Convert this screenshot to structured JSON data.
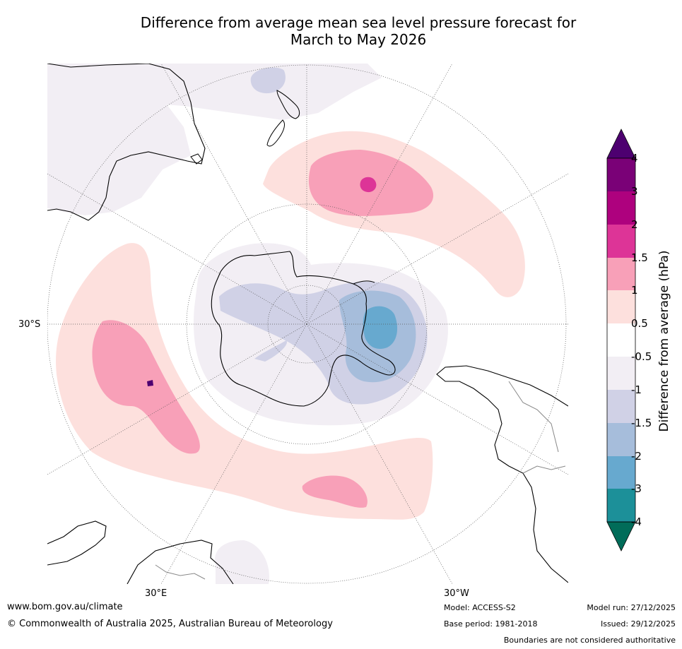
{
  "title": {
    "line1": "Difference from average mean sea level pressure forecast for",
    "line2": "March to May 2026"
  },
  "map": {
    "lat_label": "30°S",
    "lon_label_left": "30°E",
    "lon_label_right": "30°W"
  },
  "colorbar": {
    "title": "Difference from average (hPa)",
    "ticks": [
      "4",
      "3",
      "2",
      "1.5",
      "1",
      "0.5",
      "-0.5",
      "-1",
      "-1.5",
      "-2",
      "-3",
      "-4"
    ],
    "colors": {
      "over": "#4d0070",
      "c3_4": "#7a0177",
      "c2_3": "#ae017e",
      "c15_2": "#dd3497",
      "c1_15": "#f8a0b8",
      "c05_1": "#fde0dd",
      "neutral": "#ffffff",
      "cm1_m05": "#f2eef4",
      "cm15_m1": "#d0d1e6",
      "cm2_m15": "#a6bddb",
      "cm3_m2": "#67a9cf",
      "cm4_m3": "#1c9099",
      "under": "#016c59"
    }
  },
  "footer": {
    "website": "www.bom.gov.au/climate",
    "copyright": "© Commonwealth of Australia 2025, Australian Bureau of Meteorology",
    "model": "Model: ACCESS-S2",
    "base_period": "Base period: 1981-2018",
    "model_run": "Model run: 27/12/2025",
    "issued": "Issued: 29/12/2025",
    "disclaimer": "Boundaries are not considered authoritative"
  }
}
